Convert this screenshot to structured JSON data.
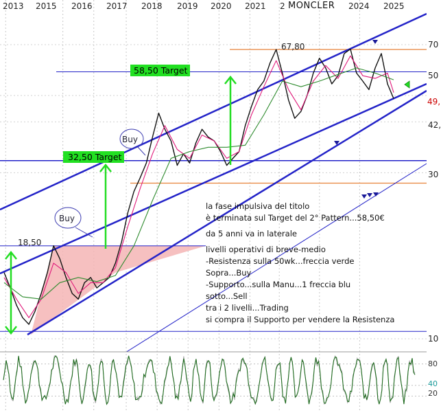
{
  "title": "MONCLER",
  "colors": {
    "background": "#ffffff",
    "price": "#111111",
    "ma_fast": "#e0197a",
    "ma_mid": "#f08a6a",
    "ma_slow": "#2e8b2e",
    "channel": "#2323c8",
    "orange_level": "#e8823a",
    "target_box": "#22e022",
    "arrow_green": "#22dd22",
    "triangle": "#f5b5b5",
    "last_price": "#cc0000"
  },
  "chart_data": {
    "type": "line",
    "title": "MONCLER",
    "x_ticks": [
      "2013",
      "2015",
      "2016",
      "2017",
      "2018",
      "2019",
      "2020",
      "2021",
      "2",
      "2024",
      "2025"
    ],
    "y_ticks": [
      10,
      30,
      42,
      50,
      70
    ],
    "y_tick_labels": [
      "10",
      "30",
      "42,",
      "50",
      "70"
    ],
    "xlim": [
      2013.0,
      2025.9
    ],
    "ylim": [
      10,
      75
    ],
    "y_scale": "log",
    "last_price_label": "49,",
    "series": [
      {
        "key": "price",
        "x": [
          2013.0,
          2013.2,
          2013.4,
          2013.6,
          2013.8,
          2014.0,
          2014.2,
          2014.4,
          2014.6,
          2014.8,
          2015.0,
          2015.2,
          2015.4,
          2015.6,
          2015.8,
          2016.0,
          2016.2,
          2016.4,
          2016.6,
          2016.8,
          2017.0,
          2017.2,
          2017.4,
          2017.6,
          2017.8,
          2018.0,
          2018.2,
          2018.4,
          2018.6,
          2018.8,
          2019.0,
          2019.2,
          2019.4,
          2019.6,
          2019.8,
          2020.0,
          2020.2,
          2020.4,
          2020.6,
          2020.8,
          2021.0,
          2021.2,
          2021.4,
          2021.6,
          2021.8,
          2022.0,
          2022.2,
          2022.4,
          2022.6,
          2022.8,
          2023.0,
          2023.2,
          2023.4,
          2023.6,
          2023.8,
          2024.0,
          2024.2,
          2024.4,
          2024.6,
          2024.8,
          2025.0,
          2025.2,
          2025.4,
          2025.6
        ],
        "values": [
          15.5,
          14.0,
          12.5,
          11.5,
          11.0,
          12.0,
          13.5,
          15.5,
          18.5,
          17.0,
          15.0,
          13.5,
          13.0,
          14.5,
          15.0,
          14.0,
          14.5,
          15.0,
          16.5,
          19.0,
          23.0,
          26.5,
          29.0,
          32.0,
          38.0,
          44.5,
          40.0,
          37.0,
          31.5,
          34.0,
          32.0,
          36.5,
          40.0,
          38.0,
          37.0,
          34.5,
          31.5,
          33.0,
          34.5,
          41.0,
          46.5,
          52.0,
          55.0,
          62.0,
          67.8,
          58.0,
          48.5,
          43.0,
          45.0,
          50.0,
          58.0,
          64.0,
          60.0,
          54.0,
          57.0,
          66.0,
          68.0,
          58.0,
          55.0,
          52.0,
          60.0,
          66.0,
          54.0,
          49.0
        ]
      },
      {
        "key": "ma_fast",
        "x": [
          2013.0,
          2013.4,
          2013.8,
          2014.2,
          2014.6,
          2015.0,
          2015.4,
          2015.8,
          2016.2,
          2016.6,
          2017.0,
          2017.4,
          2017.8,
          2018.2,
          2018.6,
          2019.0,
          2019.4,
          2019.8,
          2020.2,
          2020.6,
          2021.0,
          2021.4,
          2021.8,
          2022.2,
          2022.6,
          2023.0,
          2023.4,
          2023.8,
          2024.2,
          2024.6,
          2025.0,
          2025.4,
          2025.6
        ],
        "values": [
          15.0,
          13.0,
          11.5,
          13.0,
          16.5,
          15.5,
          13.5,
          14.5,
          14.5,
          16.0,
          21.0,
          27.0,
          34.0,
          41.0,
          35.0,
          33.0,
          38.5,
          37.0,
          33.0,
          34.5,
          44.0,
          53.0,
          63.0,
          52.0,
          45.5,
          55.0,
          61.0,
          56.0,
          65.0,
          57.0,
          56.0,
          58.0,
          51.0
        ]
      },
      {
        "key": "ma_slow",
        "x": [
          2013.0,
          2013.6,
          2014.2,
          2014.8,
          2015.4,
          2016.0,
          2016.6,
          2017.2,
          2017.8,
          2018.4,
          2019.0,
          2019.6,
          2020.2,
          2020.8,
          2021.4,
          2022.0,
          2022.6,
          2023.2,
          2023.8,
          2024.4,
          2025.0,
          2025.6
        ],
        "values": [
          14.5,
          13.2,
          13.0,
          14.5,
          15.0,
          14.6,
          15.2,
          18.5,
          25.0,
          33.0,
          34.5,
          35.5,
          35.5,
          36.0,
          44.0,
          55.0,
          53.0,
          55.0,
          57.5,
          60.0,
          58.0,
          55.5
        ]
      }
    ],
    "levels": [
      {
        "key": "orange_resistance",
        "value": 67.8,
        "label": "67,80"
      },
      {
        "key": "target_2",
        "value": 58.5
      },
      {
        "key": "orange_support",
        "value": 28.0
      },
      {
        "key": "level_32",
        "value": 32.5
      },
      {
        "key": "level_18",
        "value": 18.5,
        "label": "18,50"
      },
      {
        "key": "level_10",
        "value": 10.5
      }
    ],
    "targets": [
      {
        "label": "58,50 Target",
        "value": 58.5
      },
      {
        "label": "32,50 Target",
        "value": 32.5
      }
    ],
    "buy_labels": [
      "Buy",
      "Buy"
    ],
    "oscillator": {
      "ticks": [
        20,
        40,
        80
      ],
      "tick_labels": [
        "20",
        "40",
        "80"
      ],
      "last_value_label": "40",
      "range": [
        0,
        100
      ]
    },
    "annotation_lines": [
      "la fase impulsiva del titolo",
      "è terminata sul Target del 2° Pattern...58,50€",
      "",
      "da 5 anni va in laterale",
      "",
      "livelli operativi di breve-medio",
      "-Resistenza sulla 50wk...freccia verde",
      "Sopra...Buy",
      "-Supporto...sulla Manu...1 freccia blu",
      "sotto...Sell",
      "tra i 2 livelli...Trading",
      "si compra il Supporto per vendere la Resistenza"
    ]
  }
}
